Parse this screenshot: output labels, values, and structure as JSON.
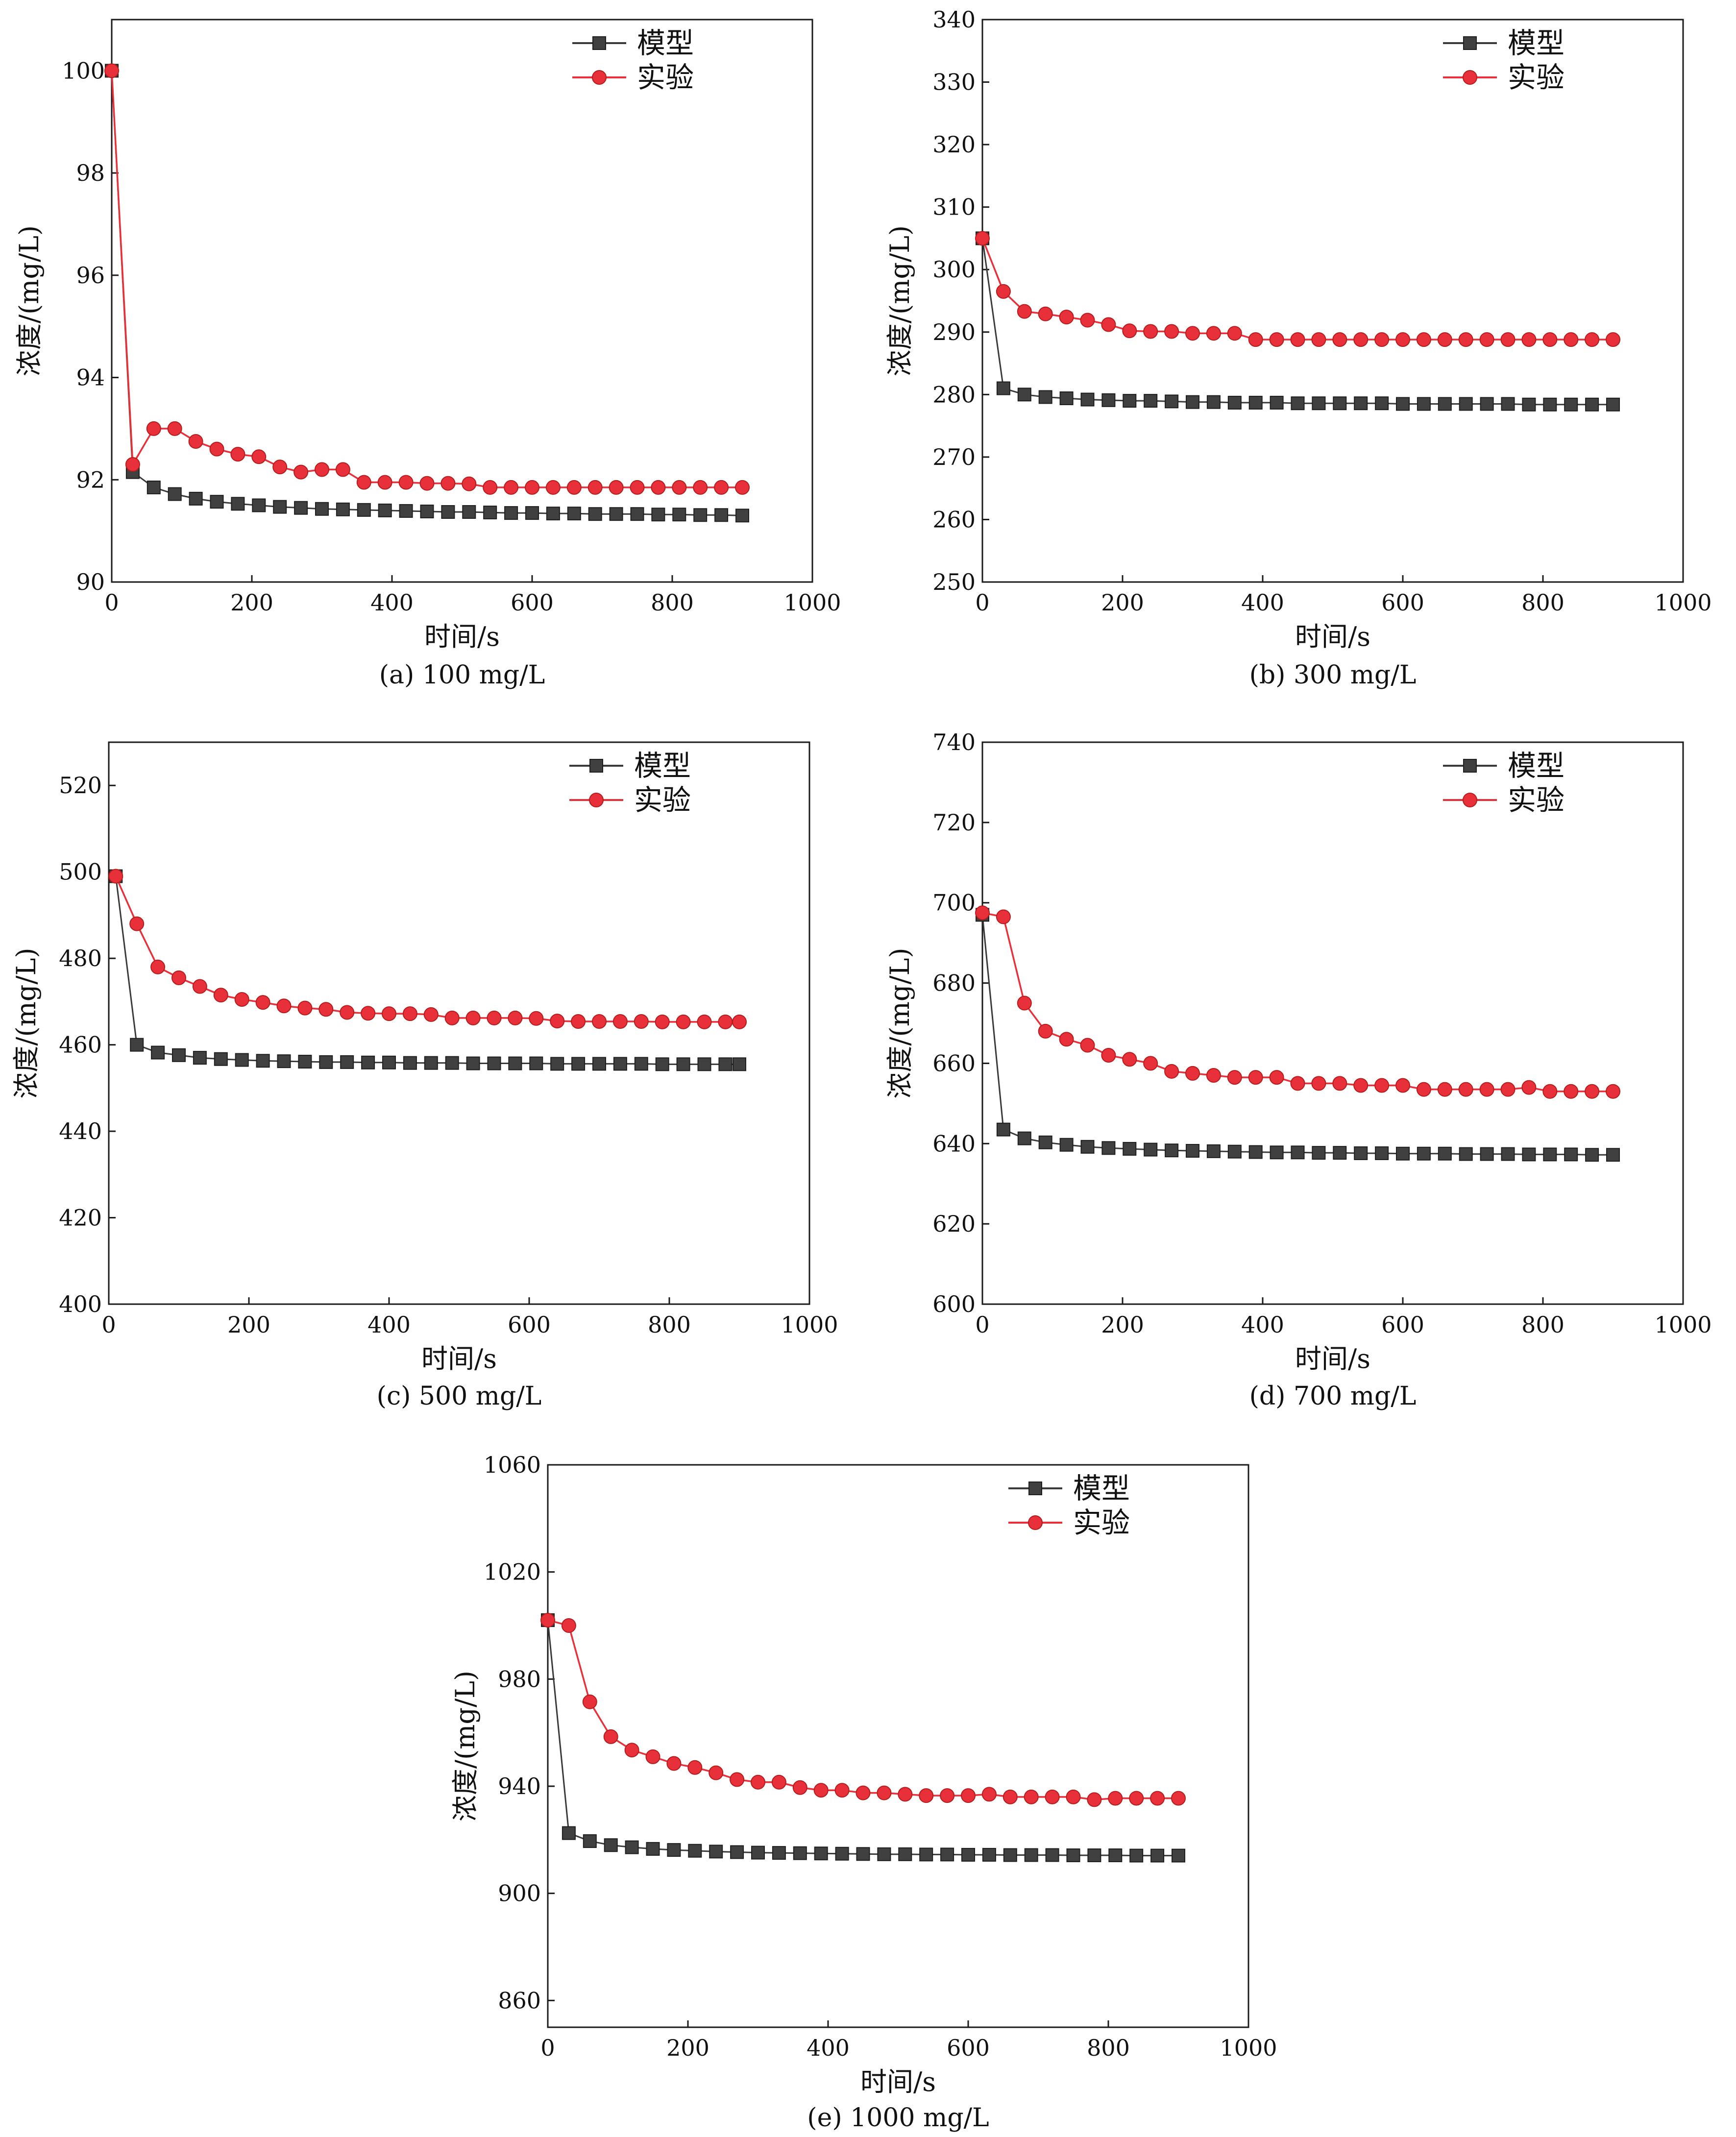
{
  "chart_data": [
    {
      "type": "line",
      "caption": "(a) 100 mg/L",
      "xlabel": "时间/s",
      "ylabel": "浓度/(mg/L)",
      "xlim": [
        0,
        1000
      ],
      "ylim": [
        90,
        101
      ],
      "xticks": [
        0,
        200,
        400,
        600,
        800,
        1000
      ],
      "yticks": [
        90,
        92,
        94,
        96,
        98,
        100
      ],
      "x": [
        0,
        30,
        60,
        90,
        120,
        150,
        180,
        210,
        240,
        270,
        300,
        330,
        360,
        390,
        420,
        450,
        480,
        510,
        540,
        570,
        600,
        630,
        660,
        690,
        720,
        750,
        780,
        810,
        840,
        870,
        900
      ],
      "series": [
        {
          "name": "模型",
          "color": "#3a3a3a",
          "marker": "square",
          "values": [
            100.0,
            92.15,
            91.85,
            91.72,
            91.63,
            91.57,
            91.53,
            91.5,
            91.47,
            91.45,
            91.43,
            91.42,
            91.41,
            91.4,
            91.39,
            91.38,
            91.37,
            91.37,
            91.36,
            91.35,
            91.35,
            91.34,
            91.34,
            91.33,
            91.33,
            91.33,
            91.32,
            91.32,
            91.31,
            91.31,
            91.3
          ]
        },
        {
          "name": "实验",
          "color": "#e8303a",
          "marker": "circle",
          "values": [
            100.0,
            92.3,
            93.0,
            93.0,
            92.75,
            92.6,
            92.5,
            92.45,
            92.25,
            92.15,
            92.2,
            92.2,
            91.95,
            91.95,
            91.95,
            91.93,
            91.93,
            91.92,
            91.85,
            91.85,
            91.85,
            91.85,
            91.85,
            91.85,
            91.85,
            91.85,
            91.85,
            91.85,
            91.85,
            91.85,
            91.85
          ]
        }
      ]
    },
    {
      "type": "line",
      "caption": "(b) 300 mg/L",
      "xlabel": "时间/s",
      "ylabel": "浓度/(mg/L)",
      "xlim": [
        0,
        1000
      ],
      "ylim": [
        250,
        340
      ],
      "xticks": [
        0,
        200,
        400,
        600,
        800,
        1000
      ],
      "yticks": [
        250,
        260,
        270,
        280,
        290,
        300,
        310,
        320,
        330,
        340
      ],
      "x": [
        0,
        30,
        60,
        90,
        120,
        150,
        180,
        210,
        240,
        270,
        300,
        330,
        360,
        390,
        420,
        450,
        480,
        510,
        540,
        570,
        600,
        630,
        660,
        690,
        720,
        750,
        780,
        810,
        840,
        870,
        900
      ],
      "series": [
        {
          "name": "模型",
          "color": "#3a3a3a",
          "marker": "square",
          "values": [
            305.0,
            281.0,
            280.0,
            279.6,
            279.4,
            279.2,
            279.1,
            279.0,
            279.0,
            278.9,
            278.8,
            278.8,
            278.7,
            278.7,
            278.7,
            278.6,
            278.6,
            278.6,
            278.6,
            278.6,
            278.5,
            278.5,
            278.5,
            278.5,
            278.5,
            278.5,
            278.4,
            278.4,
            278.4,
            278.4,
            278.4
          ]
        },
        {
          "name": "实验",
          "color": "#e8303a",
          "marker": "circle",
          "values": [
            305.0,
            296.5,
            293.3,
            292.9,
            292.4,
            291.9,
            291.2,
            290.2,
            290.1,
            290.1,
            289.8,
            289.8,
            289.8,
            288.8,
            288.8,
            288.8,
            288.8,
            288.8,
            288.8,
            288.8,
            288.8,
            288.8,
            288.8,
            288.8,
            288.8,
            288.8,
            288.8,
            288.8,
            288.8,
            288.8,
            288.8
          ]
        }
      ]
    },
    {
      "type": "line",
      "caption": "(c) 500 mg/L",
      "xlabel": "时间/s",
      "ylabel": "浓度/(mg/L)",
      "xlim": [
        0,
        1000
      ],
      "ylim": [
        400,
        530
      ],
      "xticks": [
        0,
        200,
        400,
        600,
        800,
        1000
      ],
      "yticks": [
        400,
        420,
        440,
        460,
        480,
        500,
        520
      ],
      "x": [
        10,
        40,
        70,
        100,
        130,
        160,
        190,
        220,
        250,
        280,
        310,
        340,
        370,
        400,
        430,
        460,
        490,
        520,
        550,
        580,
        610,
        640,
        670,
        700,
        730,
        760,
        790,
        820,
        850,
        880,
        900
      ],
      "series": [
        {
          "name": "模型",
          "color": "#3a3a3a",
          "marker": "square",
          "values": [
            499.0,
            460.0,
            458.2,
            457.6,
            457.0,
            456.7,
            456.5,
            456.3,
            456.2,
            456.1,
            456.0,
            456.0,
            455.9,
            455.9,
            455.8,
            455.8,
            455.8,
            455.7,
            455.7,
            455.7,
            455.7,
            455.6,
            455.6,
            455.6,
            455.6,
            455.6,
            455.5,
            455.5,
            455.5,
            455.5,
            455.5
          ]
        },
        {
          "name": "实验",
          "color": "#e8303a",
          "marker": "circle",
          "values": [
            499.0,
            488.0,
            478.0,
            475.5,
            473.5,
            471.5,
            470.5,
            469.8,
            469.0,
            468.5,
            468.2,
            467.5,
            467.3,
            467.2,
            467.2,
            467.0,
            466.2,
            466.2,
            466.2,
            466.2,
            466.1,
            465.5,
            465.4,
            465.4,
            465.4,
            465.4,
            465.3,
            465.3,
            465.3,
            465.3,
            465.3
          ]
        }
      ]
    },
    {
      "type": "line",
      "caption": "(d) 700 mg/L",
      "xlabel": "时间/s",
      "ylabel": "浓度/(mg/L)",
      "xlim": [
        0,
        1000
      ],
      "ylim": [
        600,
        740
      ],
      "xticks": [
        0,
        200,
        400,
        600,
        800,
        1000
      ],
      "yticks": [
        600,
        620,
        640,
        660,
        680,
        700,
        720,
        740
      ],
      "x": [
        0,
        30,
        60,
        90,
        120,
        150,
        180,
        210,
        240,
        270,
        300,
        330,
        360,
        390,
        420,
        450,
        480,
        510,
        540,
        570,
        600,
        630,
        660,
        690,
        720,
        750,
        780,
        810,
        840,
        870,
        900
      ],
      "series": [
        {
          "name": "模型",
          "color": "#3a3a3a",
          "marker": "square",
          "values": [
            697.0,
            643.5,
            641.3,
            640.3,
            639.7,
            639.2,
            638.9,
            638.7,
            638.5,
            638.3,
            638.2,
            638.1,
            638.0,
            637.9,
            637.8,
            637.8,
            637.7,
            637.7,
            637.6,
            637.6,
            637.5,
            637.5,
            637.5,
            637.4,
            637.4,
            637.4,
            637.3,
            637.3,
            637.3,
            637.2,
            637.2
          ]
        },
        {
          "name": "实验",
          "color": "#e8303a",
          "marker": "circle",
          "values": [
            697.5,
            696.5,
            675.0,
            668.0,
            666.0,
            664.5,
            662.0,
            661.0,
            660.0,
            658.0,
            657.5,
            657.0,
            656.5,
            656.5,
            656.5,
            655.0,
            655.0,
            655.0,
            654.5,
            654.5,
            654.5,
            653.5,
            653.5,
            653.5,
            653.5,
            653.5,
            654.0,
            653.0,
            653.0,
            653.0,
            653.0
          ]
        }
      ]
    },
    {
      "type": "line",
      "caption": "(e) 1000 mg/L",
      "xlabel": "时间/s",
      "ylabel": "浓度/(mg/L)",
      "xlim": [
        0,
        1000
      ],
      "ylim": [
        850,
        1060
      ],
      "xticks": [
        0,
        200,
        400,
        600,
        800,
        1000
      ],
      "yticks": [
        860,
        900,
        940,
        980,
        1020,
        1060
      ],
      "x": [
        0,
        30,
        60,
        90,
        120,
        150,
        180,
        210,
        240,
        270,
        300,
        330,
        360,
        390,
        420,
        450,
        480,
        510,
        540,
        570,
        600,
        630,
        660,
        690,
        720,
        750,
        780,
        810,
        840,
        870,
        900
      ],
      "series": [
        {
          "name": "模型",
          "color": "#3a3a3a",
          "marker": "square",
          "values": [
            1002.0,
            922.5,
            919.5,
            918.0,
            917.2,
            916.6,
            916.2,
            915.9,
            915.6,
            915.4,
            915.2,
            915.1,
            915.0,
            914.9,
            914.8,
            914.7,
            914.6,
            914.6,
            914.5,
            914.5,
            914.4,
            914.4,
            914.3,
            914.3,
            914.3,
            914.2,
            914.2,
            914.2,
            914.1,
            914.1,
            914.1
          ]
        },
        {
          "name": "实验",
          "color": "#e8303a",
          "marker": "circle",
          "values": [
            1002.0,
            1000.0,
            971.5,
            958.5,
            953.5,
            951.0,
            948.5,
            947.0,
            945.0,
            942.5,
            941.5,
            941.5,
            939.5,
            938.5,
            938.5,
            937.5,
            937.5,
            937.0,
            936.5,
            936.5,
            936.5,
            937.0,
            936.0,
            936.0,
            936.0,
            936.0,
            935.0,
            935.5,
            935.5,
            935.5,
            935.5
          ]
        }
      ]
    }
  ]
}
